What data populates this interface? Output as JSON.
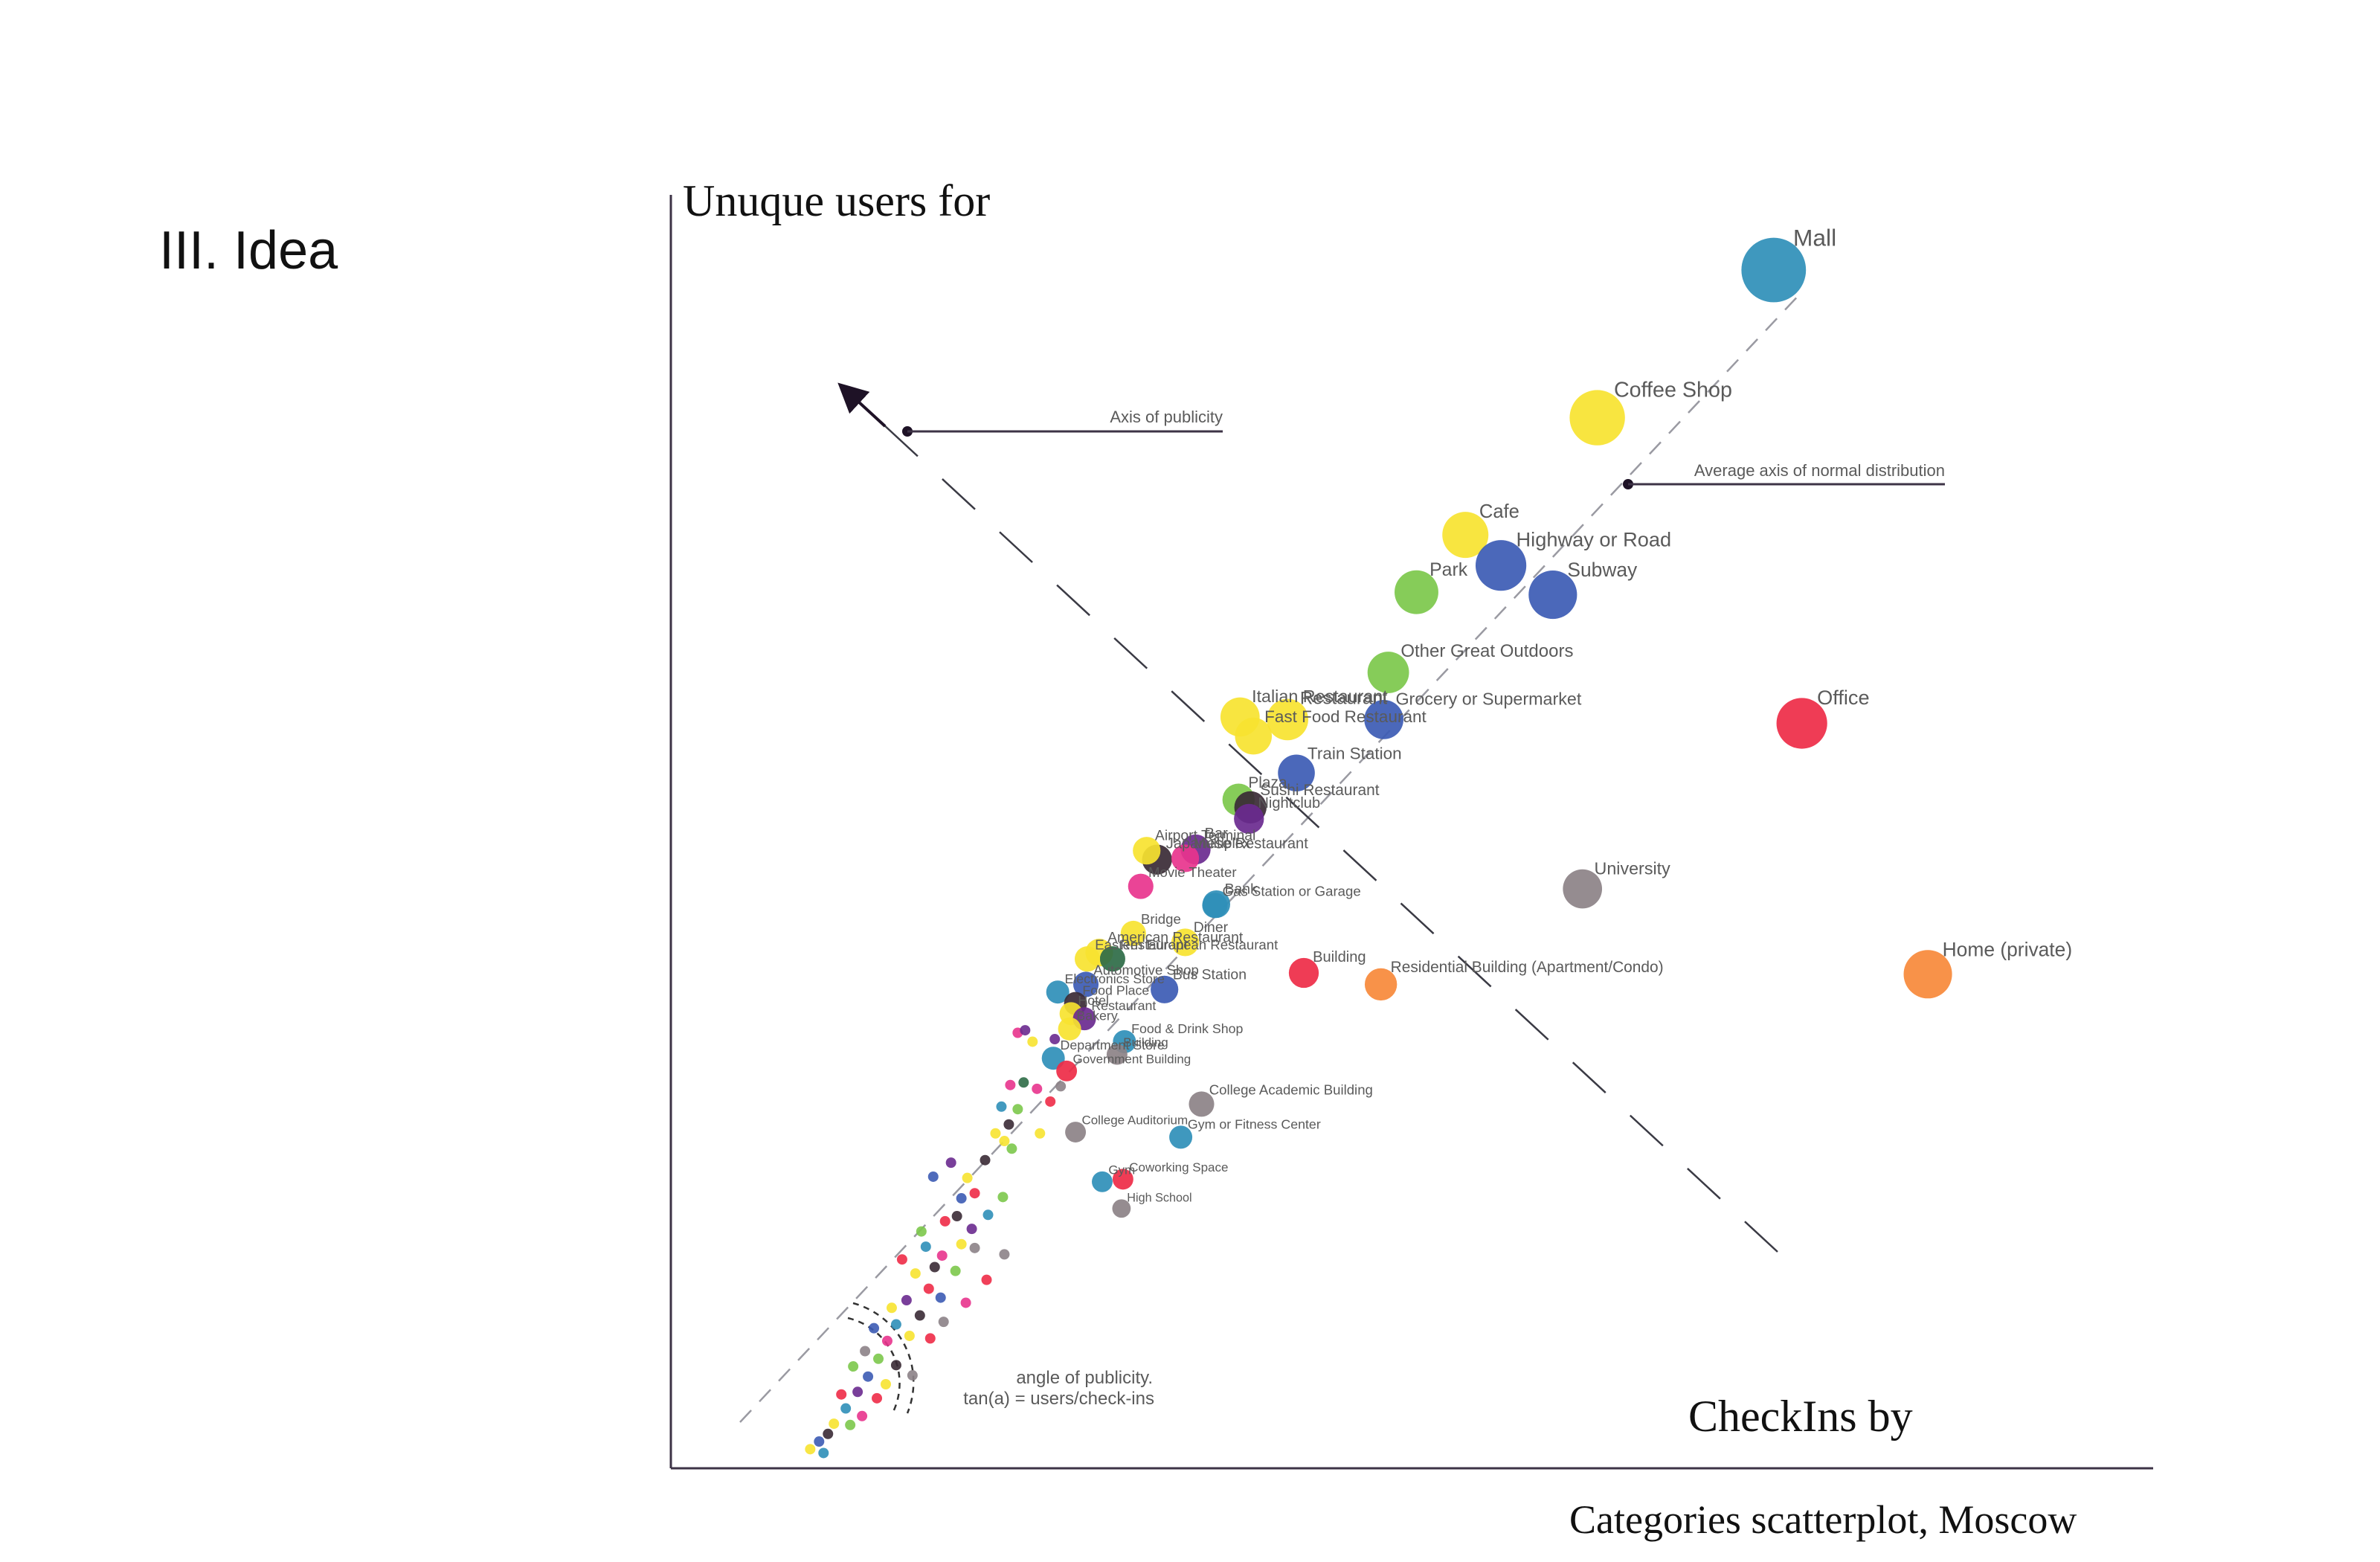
{
  "slide": {
    "title": "III. Idea"
  },
  "caption": "Categories scatterplot, Moscow",
  "chart_data": {
    "type": "scatter",
    "title": "Categories scatterplot, Moscow",
    "xlabel": "CheckIns by",
    "ylabel": "Unuque users for",
    "xlim": [
      0,
      100
    ],
    "ylim": [
      0,
      100
    ],
    "grid": false,
    "colors": {
      "blue": "#3c5bb4",
      "teal": "#2f8fb8",
      "yellow": "#f7e330",
      "green": "#7cc84b",
      "red": "#ee2b47",
      "orange": "#f7893a",
      "gray": "#8c8287",
      "purple": "#6a2a8f",
      "pink": "#e8348d",
      "dark": "#3a2a35",
      "darkgreen": "#2e6b46"
    },
    "annotations": {
      "publicity_axis": "Axis of publicity",
      "normal_axis": "Average axis of normal distribution",
      "angle_line1": "angle of publicity.",
      "angle_line2": "tan(a) = users/check-ins"
    },
    "points": [
      {
        "label": "Mall",
        "x": 74.4,
        "y": 94.1,
        "c": "teal",
        "s": 28
      },
      {
        "label": "Coffee Shop",
        "x": 62.5,
        "y": 82.5,
        "c": "yellow",
        "s": 24
      },
      {
        "label": "Cafe",
        "x": 53.6,
        "y": 73.3,
        "c": "yellow",
        "s": 20
      },
      {
        "label": "Highway or Road",
        "x": 56.0,
        "y": 70.9,
        "c": "blue",
        "s": 22
      },
      {
        "label": "Park",
        "x": 50.3,
        "y": 68.8,
        "c": "green",
        "s": 19
      },
      {
        "label": "Subway",
        "x": 59.5,
        "y": 68.6,
        "c": "blue",
        "s": 21
      },
      {
        "label": "Other Great Outdoors",
        "x": 48.4,
        "y": 62.5,
        "c": "green",
        "s": 18
      },
      {
        "label": "Office",
        "x": 76.3,
        "y": 58.5,
        "c": "red",
        "s": 22
      },
      {
        "label": "Italian Restaurant",
        "x": 38.4,
        "y": 59.0,
        "c": "yellow",
        "s": 17
      },
      {
        "label": "Restaurant",
        "x": 41.6,
        "y": 58.8,
        "c": "yellow",
        "s": 18
      },
      {
        "label": "Fast Food Restaurant",
        "x": 39.3,
        "y": 57.5,
        "c": "yellow",
        "s": 16
      },
      {
        "label": "Grocery or Supermarket",
        "x": 48.1,
        "y": 58.8,
        "c": "blue",
        "s": 17
      },
      {
        "label": "Train Station",
        "x": 42.2,
        "y": 54.6,
        "c": "blue",
        "s": 16
      },
      {
        "label": "Plaza",
        "x": 38.3,
        "y": 52.5,
        "c": "green",
        "s": 14
      },
      {
        "label": "Sushi Restaurant",
        "x": 39.1,
        "y": 51.9,
        "c": "dark",
        "s": 14
      },
      {
        "label": "Nightclub",
        "x": 39.0,
        "y": 51.0,
        "c": "purple",
        "s": 13
      },
      {
        "label": "Bar",
        "x": 35.4,
        "y": 48.6,
        "c": "purple",
        "s": 13
      },
      {
        "label": "Japanese Restaurant",
        "x": 32.8,
        "y": 47.8,
        "c": "dark",
        "s": 13
      },
      {
        "label": "Multiplex",
        "x": 34.7,
        "y": 47.9,
        "c": "pink",
        "s": 12
      },
      {
        "label": "Airport Terminal",
        "x": 32.1,
        "y": 48.5,
        "c": "yellow",
        "s": 12
      },
      {
        "label": "Movie Theater",
        "x": 31.7,
        "y": 45.7,
        "c": "pink",
        "s": 11
      },
      {
        "label": "Bank",
        "x": 36.8,
        "y": 44.3,
        "c": "teal",
        "s": 12
      },
      {
        "label": "Gas Station or Garage",
        "x": 36.7,
        "y": 44.2,
        "c": "teal",
        "s": 11
      },
      {
        "label": "University",
        "x": 61.5,
        "y": 45.5,
        "c": "gray",
        "s": 17
      },
      {
        "label": "Home (private)",
        "x": 84.8,
        "y": 38.8,
        "c": "orange",
        "s": 21
      },
      {
        "label": "Building",
        "x": 42.7,
        "y": 38.9,
        "c": "red",
        "s": 13
      },
      {
        "label": "Residential Building (Apartment/Condo)",
        "x": 47.9,
        "y": 38.0,
        "c": "orange",
        "s": 14
      },
      {
        "label": "Diner",
        "x": 34.7,
        "y": 41.3,
        "c": "yellow",
        "s": 12
      },
      {
        "label": "American Restaurant",
        "x": 28.9,
        "y": 40.5,
        "c": "yellow",
        "s": 12
      },
      {
        "label": "Bridge",
        "x": 31.2,
        "y": 42.0,
        "c": "yellow",
        "s": 11
      },
      {
        "label": "Restaurant",
        "x": 29.8,
        "y": 40.0,
        "c": "darkgreen",
        "s": 11
      },
      {
        "label": "Eastern European Restaurant",
        "x": 28.1,
        "y": 40.0,
        "c": "yellow",
        "s": 11
      },
      {
        "label": "Electronics Store",
        "x": 26.1,
        "y": 37.4,
        "c": "teal",
        "s": 10
      },
      {
        "label": "Automotive Shop",
        "x": 28.0,
        "y": 38.0,
        "c": "blue",
        "s": 11
      },
      {
        "label": "Bus Station",
        "x": 33.3,
        "y": 37.6,
        "c": "blue",
        "s": 12
      },
      {
        "label": "Food Place",
        "x": 27.3,
        "y": 36.5,
        "c": "dark",
        "s": 10
      },
      {
        "label": "Hotel",
        "x": 27.0,
        "y": 35.7,
        "c": "yellow",
        "s": 10
      },
      {
        "label": "Restaurant",
        "x": 27.9,
        "y": 35.3,
        "c": "purple",
        "s": 10
      },
      {
        "label": "Bakery",
        "x": 26.9,
        "y": 34.5,
        "c": "yellow",
        "s": 10
      },
      {
        "label": "Food & Drink Shop",
        "x": 30.6,
        "y": 33.5,
        "c": "teal",
        "s": 10
      },
      {
        "label": "Building",
        "x": 30.1,
        "y": 32.5,
        "c": "gray",
        "s": 9
      },
      {
        "label": "Department Store",
        "x": 25.8,
        "y": 32.2,
        "c": "teal",
        "s": 10
      },
      {
        "label": "Government Building",
        "x": 26.7,
        "y": 31.2,
        "c": "red",
        "s": 9
      },
      {
        "label": "College Academic Building",
        "x": 35.8,
        "y": 28.6,
        "c": "gray",
        "s": 11
      },
      {
        "label": "Gym or Fitness Center",
        "x": 34.4,
        "y": 26.0,
        "c": "teal",
        "s": 10
      },
      {
        "label": "College Auditorium",
        "x": 27.3,
        "y": 26.4,
        "c": "gray",
        "s": 9
      },
      {
        "label": "Coworking Space",
        "x": 30.5,
        "y": 22.7,
        "c": "red",
        "s": 9
      },
      {
        "label": "Gym",
        "x": 29.1,
        "y": 22.5,
        "c": "teal",
        "s": 9
      },
      {
        "label": "High School",
        "x": 30.4,
        "y": 20.4,
        "c": "gray",
        "s": 8
      }
    ],
    "cloud": [
      {
        "x": 23.4,
        "y": 34.2,
        "c": "pink"
      },
      {
        "x": 23.9,
        "y": 34.4,
        "c": "purple"
      },
      {
        "x": 25.9,
        "y": 33.7,
        "c": "purple"
      },
      {
        "x": 24.4,
        "y": 33.5,
        "c": "yellow"
      },
      {
        "x": 22.9,
        "y": 30.1,
        "c": "pink"
      },
      {
        "x": 23.8,
        "y": 30.3,
        "c": "darkgreen"
      },
      {
        "x": 24.7,
        "y": 29.8,
        "c": "pink"
      },
      {
        "x": 22.3,
        "y": 28.4,
        "c": "teal"
      },
      {
        "x": 23.4,
        "y": 28.2,
        "c": "green"
      },
      {
        "x": 21.9,
        "y": 26.3,
        "c": "yellow"
      },
      {
        "x": 22.8,
        "y": 27.0,
        "c": "dark"
      },
      {
        "x": 22.5,
        "y": 25.7,
        "c": "yellow"
      },
      {
        "x": 23.0,
        "y": 25.1,
        "c": "green"
      },
      {
        "x": 21.2,
        "y": 24.2,
        "c": "dark"
      },
      {
        "x": 20.0,
        "y": 22.8,
        "c": "yellow"
      },
      {
        "x": 20.5,
        "y": 21.6,
        "c": "red"
      },
      {
        "x": 19.6,
        "y": 21.2,
        "c": "blue"
      },
      {
        "x": 22.4,
        "y": 21.3,
        "c": "green"
      },
      {
        "x": 17.7,
        "y": 22.9,
        "c": "blue"
      },
      {
        "x": 19.3,
        "y": 19.8,
        "c": "dark"
      },
      {
        "x": 20.3,
        "y": 18.8,
        "c": "purple"
      },
      {
        "x": 18.5,
        "y": 19.4,
        "c": "red"
      },
      {
        "x": 19.6,
        "y": 17.6,
        "c": "yellow"
      },
      {
        "x": 17.2,
        "y": 17.4,
        "c": "teal"
      },
      {
        "x": 18.3,
        "y": 16.7,
        "c": "pink"
      },
      {
        "x": 19.2,
        "y": 15.5,
        "c": "green"
      },
      {
        "x": 16.5,
        "y": 15.3,
        "c": "yellow"
      },
      {
        "x": 17.4,
        "y": 14.1,
        "c": "red"
      },
      {
        "x": 18.2,
        "y": 13.4,
        "c": "blue"
      },
      {
        "x": 15.9,
        "y": 13.2,
        "c": "purple"
      },
      {
        "x": 16.8,
        "y": 12.0,
        "c": "dark"
      },
      {
        "x": 20.5,
        "y": 17.3,
        "c": "gray"
      },
      {
        "x": 22.5,
        "y": 16.8,
        "c": "gray"
      },
      {
        "x": 15.2,
        "y": 11.3,
        "c": "teal"
      },
      {
        "x": 16.1,
        "y": 10.4,
        "c": "yellow"
      },
      {
        "x": 14.6,
        "y": 10.0,
        "c": "pink"
      },
      {
        "x": 17.5,
        "y": 10.2,
        "c": "red"
      },
      {
        "x": 14.0,
        "y": 8.6,
        "c": "green"
      },
      {
        "x": 15.2,
        "y": 8.1,
        "c": "dark"
      },
      {
        "x": 13.3,
        "y": 7.2,
        "c": "blue"
      },
      {
        "x": 14.5,
        "y": 6.6,
        "c": "yellow"
      },
      {
        "x": 12.6,
        "y": 6.0,
        "c": "purple"
      },
      {
        "x": 13.9,
        "y": 5.5,
        "c": "red"
      },
      {
        "x": 11.8,
        "y": 4.7,
        "c": "teal"
      },
      {
        "x": 12.9,
        "y": 4.1,
        "c": "pink"
      },
      {
        "x": 11.0,
        "y": 3.5,
        "c": "yellow"
      },
      {
        "x": 10.6,
        "y": 2.7,
        "c": "dark"
      },
      {
        "x": 10.0,
        "y": 2.1,
        "c": "blue"
      },
      {
        "x": 16.3,
        "y": 7.3,
        "c": "gray"
      },
      {
        "x": 18.4,
        "y": 11.5,
        "c": "gray"
      },
      {
        "x": 21.3,
        "y": 14.8,
        "c": "red"
      },
      {
        "x": 13.1,
        "y": 9.2,
        "c": "gray"
      },
      {
        "x": 16.9,
        "y": 18.6,
        "c": "green"
      },
      {
        "x": 18.9,
        "y": 24.0,
        "c": "purple"
      },
      {
        "x": 21.4,
        "y": 19.9,
        "c": "teal"
      },
      {
        "x": 24.9,
        "y": 26.3,
        "c": "yellow"
      },
      {
        "x": 25.6,
        "y": 28.8,
        "c": "red"
      },
      {
        "x": 26.3,
        "y": 30.0,
        "c": "gray"
      },
      {
        "x": 12.3,
        "y": 8.0,
        "c": "green"
      },
      {
        "x": 14.9,
        "y": 12.6,
        "c": "yellow"
      },
      {
        "x": 17.8,
        "y": 15.8,
        "c": "dark"
      },
      {
        "x": 15.6,
        "y": 16.4,
        "c": "red"
      },
      {
        "x": 13.7,
        "y": 11.0,
        "c": "blue"
      },
      {
        "x": 19.9,
        "y": 13.0,
        "c": "pink"
      },
      {
        "x": 11.5,
        "y": 5.8,
        "c": "red"
      },
      {
        "x": 12.1,
        "y": 3.4,
        "c": "green"
      },
      {
        "x": 9.4,
        "y": 1.5,
        "c": "yellow"
      },
      {
        "x": 10.3,
        "y": 1.2,
        "c": "teal"
      }
    ]
  }
}
